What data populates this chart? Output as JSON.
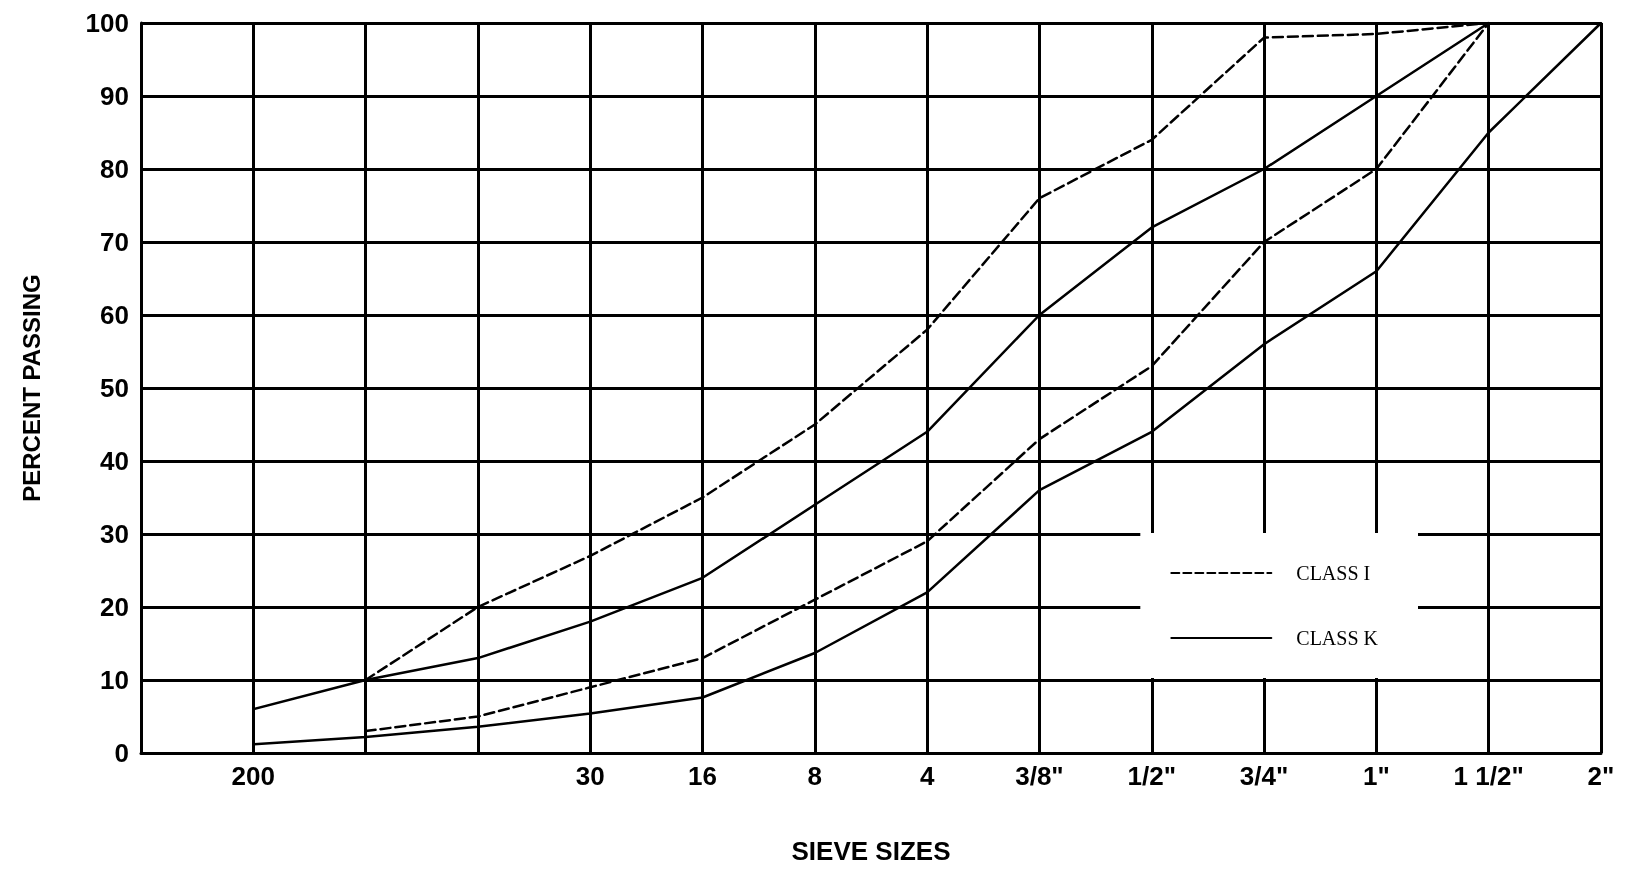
{
  "chart_data": {
    "type": "line",
    "xlabel": "SIEVE SIZES",
    "ylabel": "PERCENT PASSING",
    "categories": [
      null,
      "200",
      null,
      null,
      "30",
      "16",
      "8",
      "4",
      "3/8\"",
      "1/2\"",
      "3/4\"",
      "1\"",
      "1 1/2\"",
      "2\""
    ],
    "ylim": [
      0,
      100
    ],
    "yticks": [
      0,
      10,
      20,
      30,
      40,
      50,
      60,
      70,
      80,
      90,
      100
    ],
    "grid": true,
    "legend": "bottom right",
    "marker": "none",
    "series": [
      {
        "name": "CLASS I",
        "color": "#000000",
        "line_style": "dashed",
        "values": [
          null,
          null,
          10,
          20,
          27,
          35,
          45,
          58,
          76,
          84,
          98,
          98.5,
          100,
          null
        ]
      },
      {
        "color": "#000000",
        "line_style": "dashed",
        "values": [
          null,
          null,
          3,
          5,
          9,
          13,
          21,
          29,
          43,
          53,
          70,
          80,
          100,
          null
        ]
      },
      {
        "name": "CLASS K",
        "color": "#000000",
        "line_style": "solid",
        "values": [
          null,
          6,
          10,
          13,
          18,
          24,
          34,
          44,
          60,
          72,
          80,
          90,
          100,
          null
        ]
      },
      {
        "color": "#000000",
        "line_style": "solid",
        "values": [
          null,
          1.2,
          2.2,
          3.6,
          5.4,
          7.6,
          13.7,
          22,
          36,
          44,
          56,
          66,
          85,
          100
        ]
      }
    ]
  }
}
